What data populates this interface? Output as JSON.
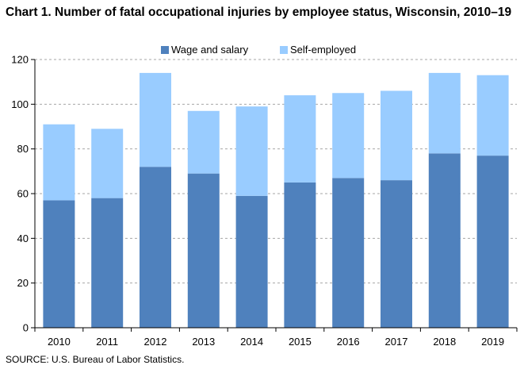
{
  "title": "Chart 1. Number of fatal occupational injuries by employee status, Wisconsin, 2010–19",
  "source": "SOURCE: U.S. Bureau of Labor Statistics.",
  "chart_data": {
    "type": "bar",
    "stacked": true,
    "title": "Chart 1. Number of fatal occupational injuries by employee status, Wisconsin, 2010–19",
    "categories": [
      "2010",
      "2011",
      "2012",
      "2013",
      "2014",
      "2015",
      "2016",
      "2017",
      "2018",
      "2019"
    ],
    "series": [
      {
        "name": "Wage and salary",
        "color": "#4f81bd",
        "values": [
          57,
          58,
          72,
          69,
          59,
          65,
          67,
          66,
          78,
          77
        ]
      },
      {
        "name": "Self-employed",
        "color": "#99ccff",
        "values": [
          34,
          31,
          42,
          28,
          40,
          39,
          38,
          40,
          36,
          36
        ]
      }
    ],
    "ylim": [
      0,
      120
    ],
    "yticks": [
      0,
      20,
      40,
      60,
      80,
      100,
      120
    ],
    "grid": true,
    "legend": "top-center",
    "xlabel": "",
    "ylabel": ""
  }
}
